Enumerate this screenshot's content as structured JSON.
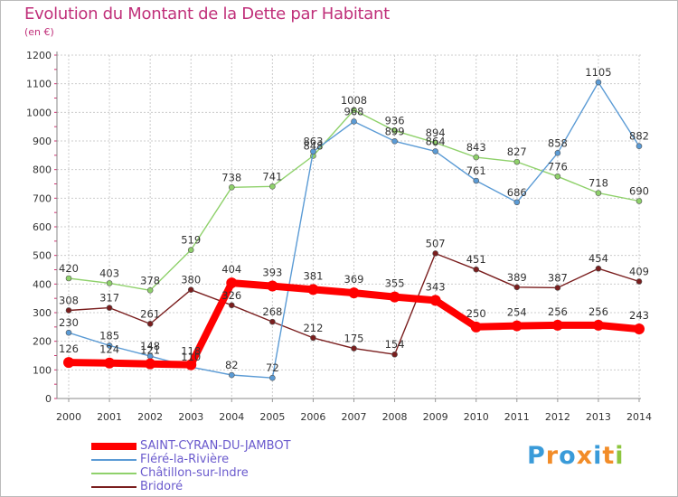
{
  "title": "Evolution du Montant de la Dette par Habitant",
  "subtitle": "(en €)",
  "logo": {
    "letters": [
      "P",
      "r",
      "o",
      "x",
      "i",
      "t",
      "i"
    ],
    "colors": [
      "#3a9bd9",
      "#f28c28",
      "#3a9bd9",
      "#f28c28",
      "#3a9bd9",
      "#f28c28",
      "#8dc63f"
    ]
  },
  "chart_data": {
    "type": "line",
    "title": "Evolution du Montant de la Dette par Habitant",
    "ylabel": "(en €)",
    "x": [
      "2000",
      "2001",
      "2002",
      "2003",
      "2004",
      "2005",
      "2006",
      "2007",
      "2008",
      "2009",
      "2010",
      "2011",
      "2012",
      "2013",
      "2014"
    ],
    "ylim": [
      0,
      1200
    ],
    "yticks": [
      0,
      100,
      200,
      300,
      400,
      500,
      600,
      700,
      800,
      900,
      1000,
      1100,
      1200
    ],
    "grid": true,
    "legend_position": "bottom-left",
    "series": [
      {
        "name": "SAINT-CYRAN-DU-JAMBOT",
        "color": "#ff0000",
        "values": [
          126,
          124,
          121,
          118,
          404,
          393,
          381,
          369,
          355,
          343,
          250,
          254,
          256,
          256,
          243
        ]
      },
      {
        "name": "Fléré-la-Rivière",
        "color": "#5b9bd5",
        "values": [
          230,
          185,
          148,
          110,
          82,
          72,
          863,
          968,
          899,
          864,
          761,
          686,
          858,
          1105,
          882
        ]
      },
      {
        "name": "Châtillon-sur-Indre",
        "color": "#8fd16b",
        "values": [
          420,
          403,
          378,
          519,
          738,
          741,
          848,
          1008,
          936,
          894,
          843,
          827,
          776,
          718,
          690
        ]
      },
      {
        "name": "Bridoré",
        "color": "#7a1e1e",
        "values": [
          308,
          317,
          261,
          380,
          326,
          268,
          212,
          175,
          154,
          507,
          451,
          389,
          387,
          454,
          409
        ]
      }
    ]
  }
}
